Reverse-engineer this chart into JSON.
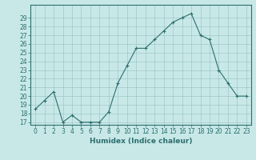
{
  "x": [
    0,
    1,
    2,
    3,
    4,
    5,
    6,
    7,
    8,
    9,
    10,
    11,
    12,
    13,
    14,
    15,
    16,
    17,
    18,
    19,
    20,
    21,
    22,
    23
  ],
  "y": [
    18.5,
    19.5,
    20.5,
    17.0,
    17.8,
    17.0,
    17.0,
    17.0,
    18.2,
    21.5,
    23.5,
    25.5,
    25.5,
    26.5,
    27.5,
    28.5,
    29.0,
    29.5,
    27.0,
    26.5,
    23.0,
    21.5,
    20.0,
    20.0
  ],
  "line_color": "#2d6e6e",
  "marker": "+",
  "marker_size": 3,
  "marker_lw": 0.8,
  "line_width": 0.8,
  "bg_color": "#c8e8e8",
  "grid_color": "#a0c8c8",
  "xlabel": "Humidex (Indice chaleur)",
  "xlim": [
    -0.5,
    23.5
  ],
  "ylim": [
    17,
    30
  ],
  "yticks": [
    17,
    18,
    19,
    20,
    21,
    22,
    23,
    24,
    25,
    26,
    27,
    28,
    29
  ],
  "xticks": [
    0,
    1,
    2,
    3,
    4,
    5,
    6,
    7,
    8,
    9,
    10,
    11,
    12,
    13,
    14,
    15,
    16,
    17,
    18,
    19,
    20,
    21,
    22,
    23
  ],
  "tick_color": "#2d6e6e",
  "label_fontsize": 5.5,
  "xlabel_fontsize": 6.5
}
